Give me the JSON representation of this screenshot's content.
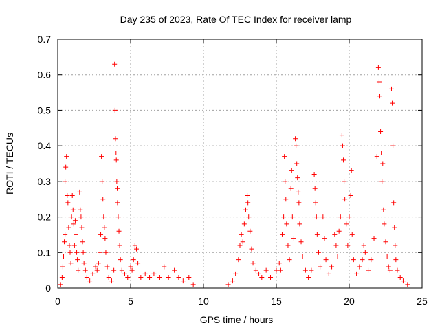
{
  "chart_data": {
    "type": "scatter",
    "title": "Day 235 of 2023, Rate Of TEC Index for receiver lamp",
    "xlabel": "GPS time / hours",
    "ylabel": "ROTI / TECUs",
    "xlim": [
      0,
      25
    ],
    "ylim": [
      0,
      0.7
    ],
    "xticks": [
      0,
      5,
      10,
      15,
      20,
      25
    ],
    "xtick_labels": [
      "0",
      "5",
      "10",
      "15",
      "20",
      "25"
    ],
    "yticks": [
      0,
      0.1,
      0.2,
      0.3,
      0.4,
      0.5,
      0.6,
      0.7
    ],
    "ytick_labels": [
      "0",
      "0.1",
      "0.2",
      "0.3",
      "0.4",
      "0.5",
      "0.6",
      "0.7"
    ],
    "grid": true,
    "marker": "plus",
    "series": [
      {
        "color": "#ff0000",
        "points": [
          [
            0.2,
            0.01
          ],
          [
            0.3,
            0.03
          ],
          [
            0.35,
            0.06
          ],
          [
            0.4,
            0.09
          ],
          [
            0.45,
            0.13
          ],
          [
            0.5,
            0.15
          ],
          [
            0.5,
            0.3
          ],
          [
            0.55,
            0.34
          ],
          [
            0.6,
            0.37
          ],
          [
            0.65,
            0.26
          ],
          [
            0.7,
            0.24
          ],
          [
            0.75,
            0.17
          ],
          [
            0.8,
            0.12
          ],
          [
            0.85,
            0.1
          ],
          [
            0.9,
            0.07
          ],
          [
            0.95,
            0.2
          ],
          [
            1.0,
            0.26
          ],
          [
            1.05,
            0.22
          ],
          [
            1.1,
            0.18
          ],
          [
            1.15,
            0.12
          ],
          [
            1.2,
            0.19
          ],
          [
            1.25,
            0.15
          ],
          [
            1.3,
            0.1
          ],
          [
            1.35,
            0.08
          ],
          [
            1.4,
            0.05
          ],
          [
            1.5,
            0.27
          ],
          [
            1.55,
            0.22
          ],
          [
            1.6,
            0.2
          ],
          [
            1.65,
            0.17
          ],
          [
            1.7,
            0.13
          ],
          [
            1.75,
            0.1
          ],
          [
            1.8,
            0.07
          ],
          [
            1.9,
            0.05
          ],
          [
            2.0,
            0.03
          ],
          [
            2.2,
            0.02
          ],
          [
            2.4,
            0.04
          ],
          [
            2.6,
            0.06
          ],
          [
            2.7,
            0.05
          ],
          [
            2.8,
            0.07
          ],
          [
            2.9,
            0.1
          ],
          [
            2.95,
            0.15
          ],
          [
            3.0,
            0.37
          ],
          [
            3.05,
            0.3
          ],
          [
            3.1,
            0.25
          ],
          [
            3.15,
            0.2
          ],
          [
            3.2,
            0.17
          ],
          [
            3.25,
            0.14
          ],
          [
            3.3,
            0.1
          ],
          [
            3.4,
            0.06
          ],
          [
            3.5,
            0.03
          ],
          [
            3.7,
            0.02
          ],
          [
            3.85,
            0.05
          ],
          [
            3.9,
            0.63
          ],
          [
            3.93,
            0.5
          ],
          [
            3.96,
            0.42
          ],
          [
            4.0,
            0.38
          ],
          [
            4.02,
            0.36
          ],
          [
            4.05,
            0.3
          ],
          [
            4.08,
            0.28
          ],
          [
            4.1,
            0.24
          ],
          [
            4.15,
            0.2
          ],
          [
            4.2,
            0.16
          ],
          [
            4.25,
            0.12
          ],
          [
            4.3,
            0.08
          ],
          [
            4.4,
            0.05
          ],
          [
            4.6,
            0.04
          ],
          [
            4.8,
            0.03
          ],
          [
            5.0,
            0.06
          ],
          [
            5.1,
            0.05
          ],
          [
            5.2,
            0.08
          ],
          [
            5.3,
            0.12
          ],
          [
            5.4,
            0.11
          ],
          [
            5.5,
            0.07
          ],
          [
            5.7,
            0.03
          ],
          [
            6.0,
            0.04
          ],
          [
            6.3,
            0.03
          ],
          [
            6.6,
            0.04
          ],
          [
            7.0,
            0.03
          ],
          [
            7.3,
            0.06
          ],
          [
            7.6,
            0.03
          ],
          [
            8.0,
            0.05
          ],
          [
            8.3,
            0.03
          ],
          [
            8.6,
            0.02
          ],
          [
            9.0,
            0.03
          ],
          [
            9.3,
            0.01
          ],
          [
            11.7,
            0.01
          ],
          [
            12.0,
            0.02
          ],
          [
            12.2,
            0.04
          ],
          [
            12.4,
            0.08
          ],
          [
            12.5,
            0.12
          ],
          [
            12.6,
            0.15
          ],
          [
            12.7,
            0.13
          ],
          [
            12.8,
            0.18
          ],
          [
            12.9,
            0.22
          ],
          [
            13.0,
            0.26
          ],
          [
            13.05,
            0.24
          ],
          [
            13.1,
            0.2
          ],
          [
            13.2,
            0.16
          ],
          [
            13.3,
            0.11
          ],
          [
            13.4,
            0.07
          ],
          [
            13.6,
            0.05
          ],
          [
            13.8,
            0.04
          ],
          [
            14.0,
            0.03
          ],
          [
            14.3,
            0.05
          ],
          [
            14.6,
            0.03
          ],
          [
            15.0,
            0.05
          ],
          [
            15.2,
            0.07
          ],
          [
            15.3,
            0.05
          ],
          [
            15.4,
            0.15
          ],
          [
            15.5,
            0.2
          ],
          [
            15.55,
            0.37
          ],
          [
            15.6,
            0.3
          ],
          [
            15.65,
            0.25
          ],
          [
            15.7,
            0.18
          ],
          [
            15.8,
            0.12
          ],
          [
            15.9,
            0.08
          ],
          [
            16.0,
            0.28
          ],
          [
            16.05,
            0.33
          ],
          [
            16.1,
            0.2
          ],
          [
            16.2,
            0.14
          ],
          [
            16.3,
            0.42
          ],
          [
            16.35,
            0.4
          ],
          [
            16.4,
            0.35
          ],
          [
            16.45,
            0.31
          ],
          [
            16.5,
            0.27
          ],
          [
            16.55,
            0.24
          ],
          [
            16.6,
            0.18
          ],
          [
            16.7,
            0.13
          ],
          [
            16.8,
            0.09
          ],
          [
            17.0,
            0.05
          ],
          [
            17.2,
            0.03
          ],
          [
            17.4,
            0.05
          ],
          [
            17.6,
            0.32
          ],
          [
            17.65,
            0.28
          ],
          [
            17.7,
            0.24
          ],
          [
            17.75,
            0.2
          ],
          [
            17.8,
            0.15
          ],
          [
            17.9,
            0.1
          ],
          [
            18.0,
            0.06
          ],
          [
            18.2,
            0.2
          ],
          [
            18.3,
            0.14
          ],
          [
            18.4,
            0.08
          ],
          [
            18.6,
            0.04
          ],
          [
            18.8,
            0.06
          ],
          [
            19.0,
            0.15
          ],
          [
            19.1,
            0.12
          ],
          [
            19.2,
            0.09
          ],
          [
            19.3,
            0.16
          ],
          [
            19.4,
            0.2
          ],
          [
            19.5,
            0.43
          ],
          [
            19.55,
            0.4
          ],
          [
            19.6,
            0.36
          ],
          [
            19.65,
            0.3
          ],
          [
            19.7,
            0.25
          ],
          [
            19.8,
            0.18
          ],
          [
            19.9,
            0.12
          ],
          [
            20.0,
            0.2
          ],
          [
            20.1,
            0.26
          ],
          [
            20.15,
            0.33
          ],
          [
            20.2,
            0.15
          ],
          [
            20.3,
            0.08
          ],
          [
            20.5,
            0.04
          ],
          [
            20.7,
            0.06
          ],
          [
            20.9,
            0.08
          ],
          [
            21.0,
            0.12
          ],
          [
            21.1,
            0.1
          ],
          [
            21.3,
            0.05
          ],
          [
            21.5,
            0.08
          ],
          [
            21.7,
            0.14
          ],
          [
            21.9,
            0.37
          ],
          [
            22.0,
            0.62
          ],
          [
            22.05,
            0.58
          ],
          [
            22.1,
            0.54
          ],
          [
            22.15,
            0.44
          ],
          [
            22.2,
            0.38
          ],
          [
            22.25,
            0.3
          ],
          [
            22.3,
            0.35
          ],
          [
            22.35,
            0.22
          ],
          [
            22.4,
            0.18
          ],
          [
            22.5,
            0.13
          ],
          [
            22.6,
            0.09
          ],
          [
            22.7,
            0.06
          ],
          [
            22.8,
            0.05
          ],
          [
            22.9,
            0.56
          ],
          [
            22.95,
            0.52
          ],
          [
            23.0,
            0.4
          ],
          [
            23.05,
            0.24
          ],
          [
            23.1,
            0.17
          ],
          [
            23.15,
            0.12
          ],
          [
            23.2,
            0.08
          ],
          [
            23.3,
            0.05
          ],
          [
            23.5,
            0.03
          ],
          [
            23.7,
            0.02
          ],
          [
            24.0,
            0.01
          ]
        ]
      }
    ]
  }
}
